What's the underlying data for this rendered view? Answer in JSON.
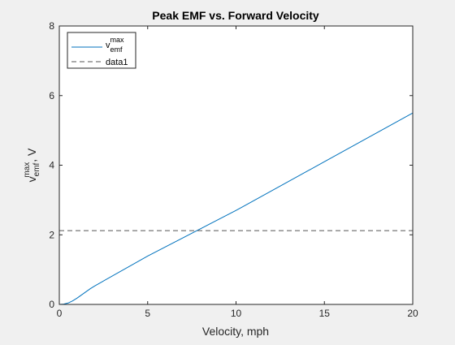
{
  "chart_data": {
    "type": "line",
    "title": "Peak EMF vs. Forward Velocity",
    "xlabel": "Velocity, mph",
    "ylabel": {
      "base": "v",
      "superscript": "max",
      "subscript": "emf",
      "suffix": ", V"
    },
    "xlim": [
      0,
      20
    ],
    "ylim": [
      0,
      8
    ],
    "xticks": [
      0,
      5,
      10,
      15,
      20
    ],
    "xtick_labels": [
      "0",
      "5",
      "10",
      "15",
      "20"
    ],
    "yticks": [
      0,
      2,
      4,
      6,
      8
    ],
    "ytick_labels": [
      "0",
      "2",
      "4",
      "6",
      "8"
    ],
    "grid": false,
    "legend_position": "top-left",
    "series": [
      {
        "name": "v_emf^max",
        "legend": {
          "base": "v",
          "superscript": "max",
          "subscript": "emf"
        },
        "color": "#0072bd",
        "style": "solid",
        "x": [
          0,
          0.25,
          0.5,
          0.75,
          1.0,
          1.25,
          1.5,
          1.75,
          2.0,
          5,
          10,
          15,
          20
        ],
        "y": [
          0,
          0.01,
          0.04,
          0.1,
          0.18,
          0.27,
          0.36,
          0.45,
          0.53,
          1.39,
          2.7,
          4.1,
          5.5
        ]
      },
      {
        "name": "data1",
        "legend": {
          "base": "data1"
        },
        "color": "#555555",
        "style": "dashed",
        "x": [
          0,
          20
        ],
        "y": [
          2.12,
          2.12
        ]
      }
    ]
  }
}
